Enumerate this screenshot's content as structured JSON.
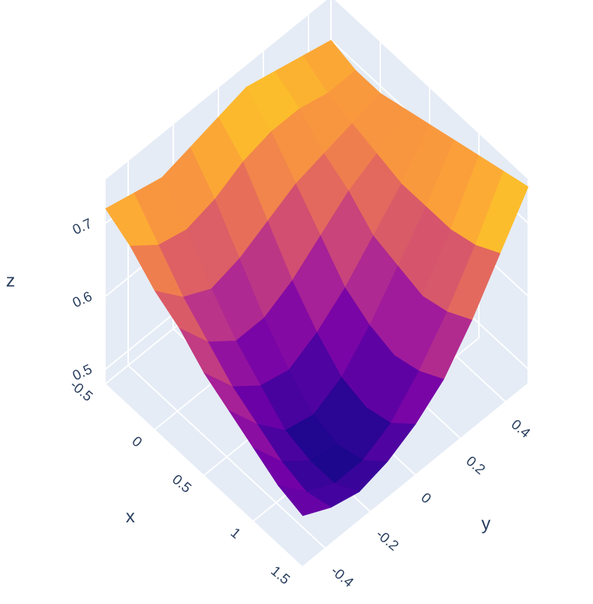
{
  "chart_data": {
    "type": "surface",
    "x": [
      -0.5,
      -0.25,
      0,
      0.25,
      0.5,
      0.75,
      1,
      1.25,
      1.5
    ],
    "y": [
      -0.5,
      -0.375,
      -0.25,
      -0.125,
      0,
      0.125,
      0.25,
      0.375,
      0.5
    ],
    "z": [
      [
        0.72,
        0.71,
        0.7,
        0.71,
        0.72,
        0.73,
        0.72,
        0.71,
        0.7
      ],
      [
        0.7,
        0.67,
        0.66,
        0.67,
        0.69,
        0.7,
        0.7,
        0.69,
        0.69
      ],
      [
        0.67,
        0.63,
        0.61,
        0.62,
        0.64,
        0.66,
        0.67,
        0.68,
        0.69
      ],
      [
        0.65,
        0.6,
        0.57,
        0.57,
        0.59,
        0.62,
        0.65,
        0.67,
        0.7
      ],
      [
        0.62,
        0.57,
        0.54,
        0.53,
        0.55,
        0.58,
        0.62,
        0.66,
        0.71
      ],
      [
        0.6,
        0.55,
        0.51,
        0.5,
        0.52,
        0.56,
        0.61,
        0.66,
        0.72
      ],
      [
        0.58,
        0.53,
        0.5,
        0.49,
        0.51,
        0.55,
        0.6,
        0.66,
        0.73
      ],
      [
        0.56,
        0.52,
        0.5,
        0.5,
        0.52,
        0.56,
        0.61,
        0.67,
        0.74
      ],
      [
        0.55,
        0.53,
        0.52,
        0.53,
        0.55,
        0.58,
        0.63,
        0.69,
        0.75
      ]
    ],
    "xlim": [
      -0.5,
      1.5
    ],
    "ylim": [
      -0.5,
      0.5
    ],
    "zlim": [
      0.48,
      0.76
    ],
    "xticks": [
      -0.5,
      0,
      0.5,
      1,
      1.5
    ],
    "yticks": [
      -0.4,
      -0.2,
      0,
      0.2,
      0.4
    ],
    "zticks": [
      0.5,
      0.6,
      0.7
    ],
    "xlabel": "x",
    "ylabel": "y",
    "zlabel": "z",
    "colorscale": [
      "#0d0887",
      "#46039f",
      "#7201a8",
      "#9c179e",
      "#bd3786",
      "#d8576b",
      "#ed7953",
      "#fb9f3a",
      "#fdca26",
      "#f0f921"
    ],
    "grid": true
  }
}
